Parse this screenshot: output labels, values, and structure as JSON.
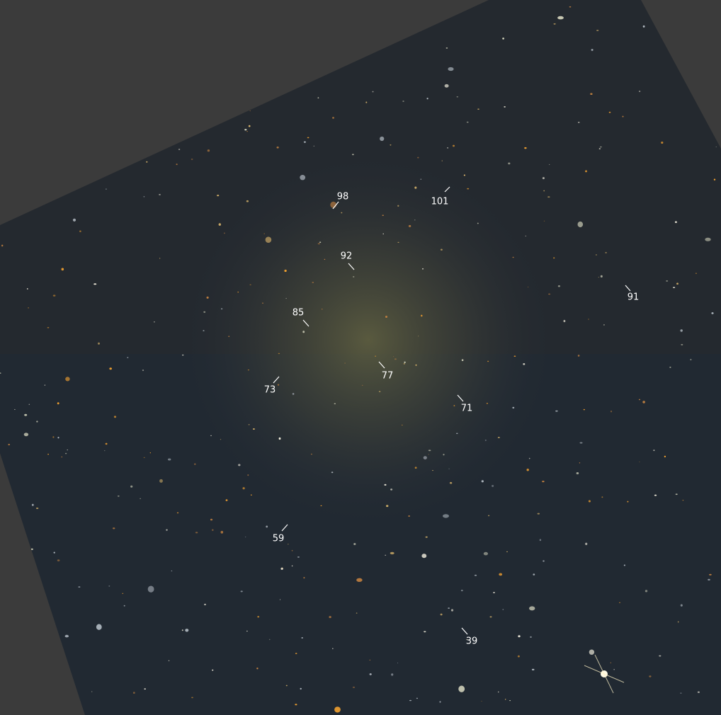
{
  "labels": [
    "98",
    "101",
    "92",
    "91",
    "85",
    "77",
    "73",
    "71",
    "59",
    "39"
  ]
}
